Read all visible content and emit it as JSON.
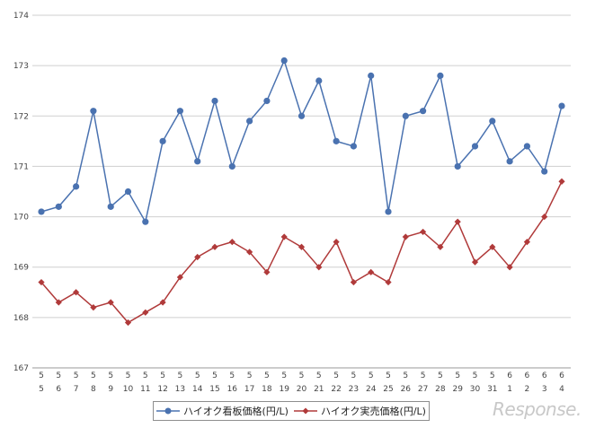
{
  "chart_data": {
    "type": "line",
    "title": "",
    "xlabel": "",
    "ylabel": "",
    "ylim": [
      167,
      174
    ],
    "yticks": [
      "167",
      "168",
      "169",
      "170",
      "171",
      "172",
      "173",
      "174"
    ],
    "categories": [
      {
        "month": "5",
        "day": "5"
      },
      {
        "month": "5",
        "day": "6"
      },
      {
        "month": "5",
        "day": "7"
      },
      {
        "month": "5",
        "day": "8"
      },
      {
        "month": "5",
        "day": "9"
      },
      {
        "month": "5",
        "day": "10"
      },
      {
        "month": "5",
        "day": "11"
      },
      {
        "month": "5",
        "day": "12"
      },
      {
        "month": "5",
        "day": "13"
      },
      {
        "month": "5",
        "day": "14"
      },
      {
        "month": "5",
        "day": "15"
      },
      {
        "month": "5",
        "day": "16"
      },
      {
        "month": "5",
        "day": "17"
      },
      {
        "month": "5",
        "day": "18"
      },
      {
        "month": "5",
        "day": "19"
      },
      {
        "month": "5",
        "day": "20"
      },
      {
        "month": "5",
        "day": "21"
      },
      {
        "month": "5",
        "day": "22"
      },
      {
        "month": "5",
        "day": "23"
      },
      {
        "month": "5",
        "day": "24"
      },
      {
        "month": "5",
        "day": "25"
      },
      {
        "month": "5",
        "day": "26"
      },
      {
        "month": "5",
        "day": "27"
      },
      {
        "month": "5",
        "day": "28"
      },
      {
        "month": "5",
        "day": "29"
      },
      {
        "month": "5",
        "day": "30"
      },
      {
        "month": "5",
        "day": "31"
      },
      {
        "month": "6",
        "day": "1"
      },
      {
        "month": "6",
        "day": "2"
      },
      {
        "month": "6",
        "day": "3"
      },
      {
        "month": "6",
        "day": "4"
      }
    ],
    "series": [
      {
        "name": "ハイオク看板価格(円/L)",
        "color": "#4a72b0",
        "marker": "circle",
        "values": [
          170.1,
          170.2,
          170.6,
          172.1,
          170.2,
          170.5,
          169.9,
          171.5,
          172.1,
          171.1,
          172.3,
          171.0,
          171.9,
          172.3,
          173.1,
          172.0,
          172.7,
          171.5,
          171.4,
          172.8,
          170.1,
          172.0,
          172.1,
          172.8,
          171.0,
          171.4,
          171.9,
          171.1,
          171.4,
          170.9,
          172.2
        ]
      },
      {
        "name": "ハイオク実売価格(円/L)",
        "color": "#b03a3a",
        "marker": "diamond",
        "values": [
          168.7,
          168.3,
          168.5,
          168.2,
          168.3,
          167.9,
          168.1,
          168.3,
          168.8,
          169.2,
          169.4,
          169.5,
          169.3,
          168.9,
          169.6,
          169.4,
          169.0,
          169.5,
          168.7,
          168.9,
          168.7,
          169.6,
          169.7,
          169.4,
          169.9,
          169.1,
          169.4,
          169.0,
          169.5,
          170.0,
          170.7
        ]
      }
    ],
    "grid": true,
    "legend_position": "bottom"
  },
  "watermark": "Response."
}
